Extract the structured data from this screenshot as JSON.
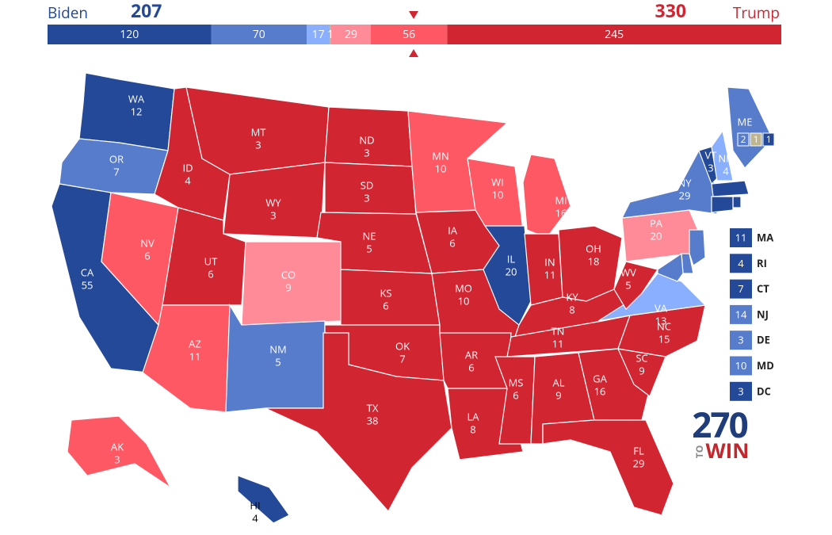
{
  "header": {
    "left_name": "Biden",
    "left_total": 207,
    "right_name": "Trump",
    "right_total": 330
  },
  "bar": [
    {
      "value": 120,
      "color": "#244999"
    },
    {
      "value": 70,
      "color": "#577ccc"
    },
    {
      "value": 17,
      "color": "#8aafff"
    },
    {
      "value": 1,
      "color": "#bfb68f"
    },
    {
      "value": 29,
      "color": "#ff8b98"
    },
    {
      "value": 56,
      "color": "#ff5865"
    },
    {
      "value": 245,
      "color": "#d22532"
    }
  ],
  "states": [
    {
      "abbr": "WA",
      "votes": 12,
      "color": "#244999"
    },
    {
      "abbr": "OR",
      "votes": 7,
      "color": "#577ccc"
    },
    {
      "abbr": "CA",
      "votes": 55,
      "color": "#244999"
    },
    {
      "abbr": "NV",
      "votes": 6,
      "color": "#ff5865"
    },
    {
      "abbr": "ID",
      "votes": 4,
      "color": "#d22532"
    },
    {
      "abbr": "MT",
      "votes": 3,
      "color": "#d22532"
    },
    {
      "abbr": "WY",
      "votes": 3,
      "color": "#d22532"
    },
    {
      "abbr": "UT",
      "votes": 6,
      "color": "#d22532"
    },
    {
      "abbr": "AZ",
      "votes": 11,
      "color": "#ff5865"
    },
    {
      "abbr": "CO",
      "votes": 9,
      "color": "#ff8b98"
    },
    {
      "abbr": "NM",
      "votes": 5,
      "color": "#577ccc"
    },
    {
      "abbr": "ND",
      "votes": 3,
      "color": "#d22532"
    },
    {
      "abbr": "SD",
      "votes": 3,
      "color": "#d22532"
    },
    {
      "abbr": "NE",
      "votes": 5,
      "color": "#d22532"
    },
    {
      "abbr": "KS",
      "votes": 6,
      "color": "#d22532"
    },
    {
      "abbr": "OK",
      "votes": 7,
      "color": "#d22532"
    },
    {
      "abbr": "TX",
      "votes": 38,
      "color": "#d22532"
    },
    {
      "abbr": "MN",
      "votes": 10,
      "color": "#ff5865"
    },
    {
      "abbr": "IA",
      "votes": 6,
      "color": "#d22532"
    },
    {
      "abbr": "MO",
      "votes": 10,
      "color": "#d22532"
    },
    {
      "abbr": "AR",
      "votes": 6,
      "color": "#d22532"
    },
    {
      "abbr": "LA",
      "votes": 8,
      "color": "#d22532"
    },
    {
      "abbr": "WI",
      "votes": 10,
      "color": "#ff5865"
    },
    {
      "abbr": "IL",
      "votes": 20,
      "color": "#244999"
    },
    {
      "abbr": "MI",
      "votes": 16,
      "color": "#ff5865"
    },
    {
      "abbr": "IN",
      "votes": 11,
      "color": "#d22532"
    },
    {
      "abbr": "OH",
      "votes": 18,
      "color": "#d22532"
    },
    {
      "abbr": "KY",
      "votes": 8,
      "color": "#d22532"
    },
    {
      "abbr": "TN",
      "votes": 11,
      "color": "#d22532"
    },
    {
      "abbr": "MS",
      "votes": 6,
      "color": "#d22532"
    },
    {
      "abbr": "AL",
      "votes": 9,
      "color": "#d22532"
    },
    {
      "abbr": "GA",
      "votes": 16,
      "color": "#d22532"
    },
    {
      "abbr": "FL",
      "votes": 29,
      "color": "#d22532"
    },
    {
      "abbr": "SC",
      "votes": 9,
      "color": "#d22532"
    },
    {
      "abbr": "NC",
      "votes": 15,
      "color": "#d22532"
    },
    {
      "abbr": "VA",
      "votes": 13,
      "color": "#8aafff"
    },
    {
      "abbr": "WV",
      "votes": 5,
      "color": "#d22532"
    },
    {
      "abbr": "PA",
      "votes": 20,
      "color": "#ff8b98"
    },
    {
      "abbr": "NY",
      "votes": 29,
      "color": "#577ccc"
    },
    {
      "abbr": "VT",
      "votes": 3,
      "color": "#244999"
    },
    {
      "abbr": "NH",
      "votes": 4,
      "color": "#8aafff"
    },
    {
      "abbr": "AK",
      "votes": 3,
      "color": "#ff5865"
    },
    {
      "abbr": "HI",
      "votes": 4,
      "color": "#244999"
    }
  ],
  "maine": {
    "abbr": "ME",
    "color": "#577ccc",
    "districts": [
      {
        "value": 2,
        "color": "#577ccc"
      },
      {
        "value": 1,
        "color": "#bfb68f"
      },
      {
        "value": 1,
        "color": "#244999"
      }
    ]
  },
  "small_states": [
    {
      "abbr": "MA",
      "votes": 11,
      "color": "#244999"
    },
    {
      "abbr": "RI",
      "votes": 4,
      "color": "#244999"
    },
    {
      "abbr": "CT",
      "votes": 7,
      "color": "#244999"
    },
    {
      "abbr": "NJ",
      "votes": 14,
      "color": "#577ccc"
    },
    {
      "abbr": "DE",
      "votes": 3,
      "color": "#577ccc"
    },
    {
      "abbr": "MD",
      "votes": 10,
      "color": "#577ccc"
    },
    {
      "abbr": "DC",
      "votes": 3,
      "color": "#244999"
    }
  ],
  "logo": {
    "number": "270",
    "to": "TO",
    "win": "WIN"
  }
}
